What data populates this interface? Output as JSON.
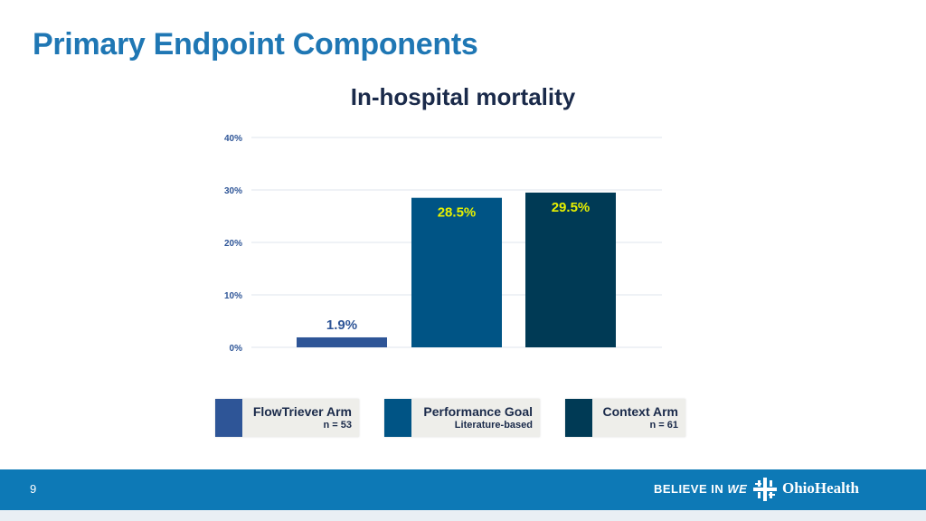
{
  "slide_title": "Primary Endpoint Components",
  "colors": {
    "title": "#1f77b4",
    "flowtriever": "#2e5597",
    "performance": "#005485",
    "context": "#003a55",
    "label_yellow": "#e6f000",
    "label_blue": "#2e5597",
    "footer": "#0d79b6"
  },
  "chart_data": {
    "type": "bar",
    "title": "In-hospital mortality",
    "categories": [
      "FlowTriever Arm",
      "Performance Goal",
      "Context Arm"
    ],
    "values": [
      1.9,
      28.5,
      29.5
    ],
    "value_labels": [
      "1.9%",
      "28.5%",
      "29.5%"
    ],
    "ylim": [
      0,
      40
    ],
    "yticks": [
      0,
      10,
      20,
      30,
      40
    ],
    "ytick_labels": [
      "0%",
      "10%",
      "20%",
      "30%",
      "40%"
    ],
    "grid": true,
    "legend_position": "bottom"
  },
  "legend": [
    {
      "name": "FlowTriever Arm",
      "sub": "n = 53",
      "color": "#2e5597"
    },
    {
      "name": "Performance Goal",
      "sub": "Literature-based",
      "color": "#005485"
    },
    {
      "name": "Context Arm",
      "sub": "n = 61",
      "color": "#003a55"
    }
  ],
  "footer": {
    "page_number": "9",
    "tagline_prefix": "BELIEVE IN",
    "tagline_we": "WE",
    "brand": "OhioHealth",
    "brand_icon": "ohiohealth-logo-icon"
  }
}
